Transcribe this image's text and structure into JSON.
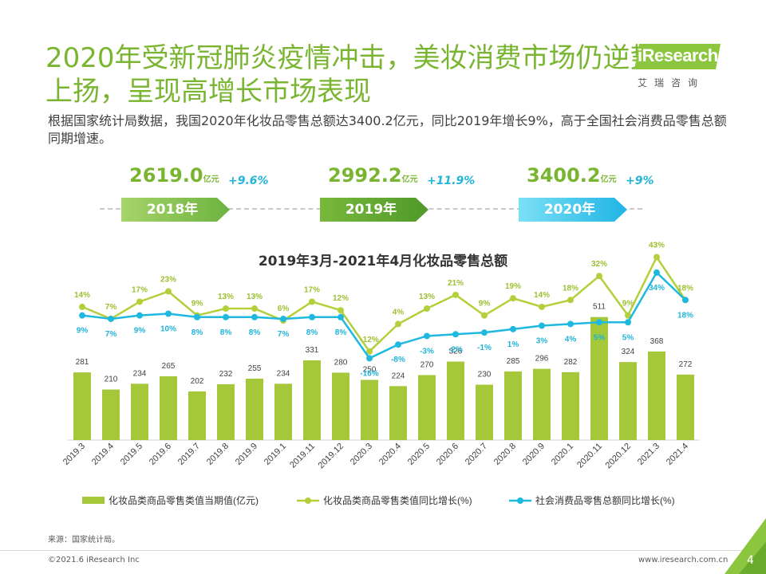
{
  "title": {
    "line1": "2020年受新冠肺炎疫情冲击，美妆消费市场仍逆势",
    "line2": "上扬，呈现高增长市场表现"
  },
  "logo": {
    "brand": "iResearch",
    "subtitle": "艾瑞咨询"
  },
  "intro": "根据国家统计局数据，我国2020年化妆品零售总额达3400.2亿元，同比2019年增长9%，高于全国社会消费品零售总额同期增速。",
  "timeline": [
    {
      "value": "2619.0",
      "unit": "亿元",
      "growth": "+9.6%",
      "year": "2018年"
    },
    {
      "value": "2992.2",
      "unit": "亿元",
      "growth": "+11.9%",
      "year": "2019年"
    },
    {
      "value": "3400.2",
      "unit": "亿元",
      "growth": "+9%",
      "year": "2020年"
    }
  ],
  "chart_data": {
    "type": "bar+line",
    "title": "2019年3月-2021年4月化妆品零售总额",
    "categories": [
      "2019.3",
      "2019.4",
      "2019.5",
      "2019.6",
      "2019.7",
      "2019.8",
      "2019.9",
      "2019.1",
      "2019.11",
      "2019.12",
      "2020.3",
      "2020.4",
      "2020.5",
      "2020.6",
      "2020.7",
      "2020.8",
      "2020.9",
      "2020.1",
      "2020.11",
      "2020.12",
      "2021.3",
      "2021.4"
    ],
    "series": [
      {
        "name": "化妆品类商品零售类值当期值(亿元)",
        "type": "bar",
        "color": "#a5c83a",
        "values": [
          281,
          210,
          234,
          265,
          202,
          232,
          255,
          234,
          331,
          280,
          250,
          224,
          270,
          326,
          230,
          285,
          296,
          282,
          511,
          324,
          368,
          272
        ]
      },
      {
        "name": "化妆品类商品零售类值同比增长(%)",
        "type": "line",
        "color": "#b3cf3a",
        "values": [
          14,
          7,
          17,
          23,
          9,
          13,
          13,
          6,
          17,
          12,
          -12,
          4,
          13,
          21,
          9,
          19,
          14,
          18,
          32,
          9,
          43,
          18
        ]
      },
      {
        "name": "社会消费品零售总额同比增长(%)",
        "type": "line",
        "color": "#1fb9e0",
        "values": [
          9,
          7,
          9,
          10,
          8,
          8,
          8,
          7,
          8,
          8,
          -16,
          -8,
          -3,
          -2,
          -1,
          1,
          3,
          4,
          5,
          5,
          34,
          18
        ]
      }
    ]
  },
  "source": "来源：国家统计局。",
  "footer": {
    "copyright": "©2021.6 iResearch Inc",
    "website": "www.iresearch.com.cn",
    "page": "4"
  },
  "colors": {
    "green": "#7ab532",
    "blue": "#1fb4d8"
  }
}
